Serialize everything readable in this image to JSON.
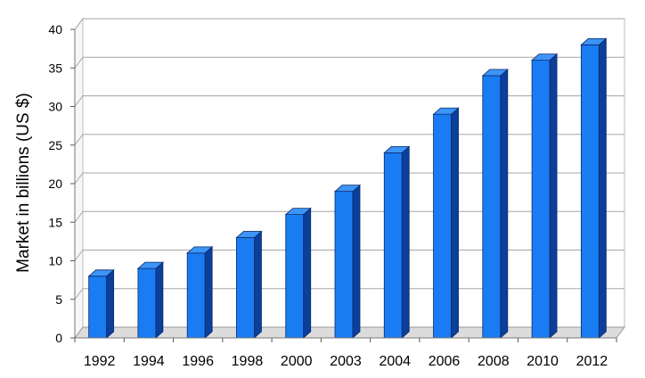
{
  "chart_data": {
    "type": "bar",
    "title": "",
    "xlabel": "",
    "ylabel": "Market in billions (US $)",
    "ylim": [
      0,
      40
    ],
    "yticks": [
      0,
      5,
      10,
      15,
      20,
      25,
      30,
      35,
      40
    ],
    "categories": [
      "1992",
      "1994",
      "1996",
      "1998",
      "2000",
      "2003",
      "2004",
      "2006",
      "2008",
      "2010",
      "2012"
    ],
    "values": [
      8,
      9,
      11,
      13,
      16,
      19,
      24,
      29,
      34,
      36,
      38
    ],
    "grid": true,
    "legend": "none",
    "style": "3d-column",
    "colors": {
      "bar_front": "#1a7cf2",
      "bar_side": "#0b3f9a",
      "bar_top": "#3d94f7",
      "bar_edge": "#0a2a6e",
      "grid": "#a6a6a6",
      "wall": "#ffffff",
      "floor": "#dcdcdc"
    }
  }
}
